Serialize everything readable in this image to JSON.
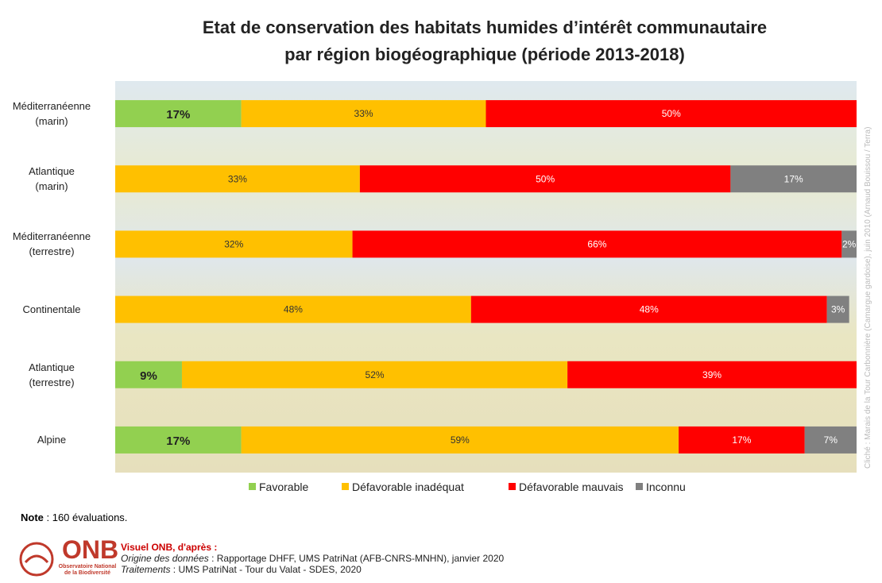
{
  "chart_data": {
    "type": "stacked-bar-horizontal",
    "title": "Etat de conservation des habitats humides d’intérêt communautaire\npar région biogéographique (période 2013-2018)",
    "categories": [
      "Méditerranéenne\n(marin)",
      "Atlantique\n(marin)",
      "Méditerranéenne\n(terrestre)",
      "Continentale",
      "Atlantique\n(terrestre)",
      "Alpine"
    ],
    "xlim": [
      0,
      100
    ],
    "legend": "bottom",
    "series": [
      {
        "name": "Favorable",
        "color": "#92d050",
        "values": [
          17,
          null,
          null,
          null,
          9,
          17
        ],
        "value_labels": [
          "17%",
          null,
          null,
          null,
          "9%",
          "17%"
        ]
      },
      {
        "name": "Défavorable inadéquat",
        "color": "#ffc000",
        "values": [
          33,
          33,
          32,
          48,
          52,
          59
        ],
        "value_labels": [
          "33%",
          "33%",
          "32%",
          "48%",
          "52%",
          "59%"
        ]
      },
      {
        "name": "Défavorable mauvais",
        "color": "#ff0000",
        "values": [
          50,
          50,
          66,
          48,
          39,
          17
        ],
        "value_labels": [
          "50%",
          "50%",
          "66%",
          "48%",
          "39%",
          "17%"
        ]
      },
      {
        "name": "Inconnu",
        "color": "#808080",
        "values": [
          null,
          17,
          2,
          3,
          null,
          7
        ],
        "value_labels": [
          null,
          "17%",
          "2%",
          "3%",
          null,
          "7%"
        ]
      }
    ]
  },
  "note": {
    "label": "Note",
    "text": " : 160 évaluations."
  },
  "source": {
    "heading": "Visuel ONB, d'après :",
    "origin_label": "Origine des données",
    "origin_text": " : Rapportage DHFF, UMS PatriNat (AFB-CNRS-MNHN),  janvier 2020",
    "treatment_label": "Traitements",
    "treatment_text": " : UMS PatriNat - Tour du Valat - SDES, 2020"
  },
  "logo": {
    "acronym": "ONB",
    "name": "Observatoire National\nde la Biodiversité"
  },
  "photo_credit": "Cliché : Marais de la Tour Carbonnière (Camargue gardoise), juin 2010 (Arnaud Bouissou / Terra)"
}
